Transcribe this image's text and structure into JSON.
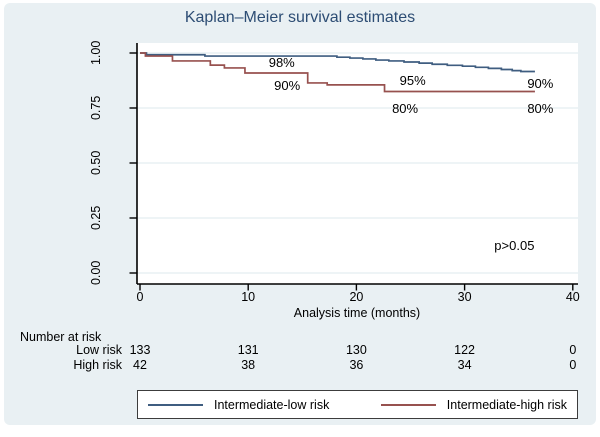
{
  "figure": {
    "background_color": "#e9f0f3",
    "plot_background": "#ffffff",
    "gridline_color": "#dce8ee",
    "axis_color": "#000000"
  },
  "chart_data": {
    "type": "line",
    "subtype": "kaplan-meier-step",
    "title": "Kaplan–Meier survival estimates",
    "title_color": "#2d4d74",
    "xlabel": "Analysis time (months)",
    "ylabel": "",
    "xlim": [
      0,
      40
    ],
    "ylim": [
      0.0,
      1.0
    ],
    "xticks": [
      "0",
      "10",
      "20",
      "30",
      "40"
    ],
    "xtick_values": [
      0,
      10,
      20,
      30,
      40
    ],
    "yticks": [
      "1.00",
      "0.75",
      "0.50",
      "0.25",
      "0.00"
    ],
    "ytick_values": [
      1.0,
      0.75,
      0.5,
      0.25,
      0.0
    ],
    "grid": "horizontal",
    "legend_position": "bottom",
    "series": [
      {
        "name": "Intermediate-low risk",
        "color": "#3f5d80",
        "steps": [
          [
            0,
            1.0
          ],
          [
            0.6,
            0.992
          ],
          [
            6.0,
            0.986
          ],
          [
            18.2,
            0.981
          ],
          [
            19.4,
            0.977
          ],
          [
            20.6,
            0.973
          ],
          [
            21.8,
            0.968
          ],
          [
            23.0,
            0.964
          ],
          [
            24.4,
            0.959
          ],
          [
            25.8,
            0.954
          ],
          [
            27.0,
            0.949
          ],
          [
            28.4,
            0.944
          ],
          [
            29.8,
            0.94
          ],
          [
            31.0,
            0.935
          ],
          [
            32.2,
            0.93
          ],
          [
            33.4,
            0.925
          ],
          [
            34.4,
            0.92
          ],
          [
            35.2,
            0.916
          ],
          [
            36.5,
            0.916
          ]
        ]
      },
      {
        "name": "Intermediate-high risk",
        "color": "#97514f",
        "steps": [
          [
            0,
            1.0
          ],
          [
            0.5,
            0.986
          ],
          [
            3.0,
            0.964
          ],
          [
            6.5,
            0.945
          ],
          [
            7.8,
            0.932
          ],
          [
            9.7,
            0.909
          ],
          [
            15.5,
            0.864
          ],
          [
            17.3,
            0.855
          ],
          [
            22.6,
            0.825
          ],
          [
            36.5,
            0.825
          ]
        ]
      }
    ],
    "annotations": [
      {
        "text": "98%",
        "month": 13.1,
        "survival": 0.95
      },
      {
        "text": "90%",
        "month": 13.6,
        "survival": 0.845
      },
      {
        "text": "95%",
        "month": 25.2,
        "survival": 0.868
      },
      {
        "text": "80%",
        "month": 24.5,
        "survival": 0.74
      },
      {
        "text": "90%",
        "month": 37.0,
        "survival": 0.855
      },
      {
        "text": "80%",
        "month": 37.0,
        "survival": 0.74
      },
      {
        "text": "p>0.05",
        "month": 34.6,
        "survival": 0.118
      }
    ]
  },
  "number_at_risk": {
    "title": "Number at risk",
    "rows": [
      {
        "label": "Low risk",
        "values": [
          "133",
          "131",
          "130",
          "122",
          "0"
        ]
      },
      {
        "label": "High risk",
        "values": [
          "42",
          "38",
          "36",
          "34",
          "0"
        ]
      }
    ]
  },
  "legend": {
    "entries": [
      {
        "label": "Intermediate-low risk",
        "color": "#3f5d80"
      },
      {
        "label": "Intermediate-high risk",
        "color": "#97514f"
      }
    ]
  }
}
